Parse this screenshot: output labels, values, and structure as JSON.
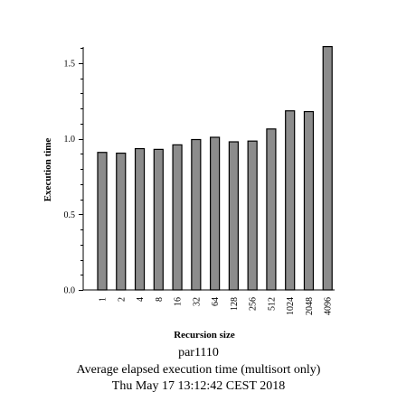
{
  "chart_data": {
    "type": "bar",
    "categories": [
      "1",
      "2",
      "4",
      "8",
      "16",
      "32",
      "64",
      "128",
      "256",
      "512",
      "1024",
      "2048",
      "4096"
    ],
    "values": [
      0.91,
      0.905,
      0.935,
      0.93,
      0.96,
      0.995,
      1.01,
      0.98,
      0.985,
      1.065,
      1.185,
      1.18,
      1.61
    ],
    "xlabel": "Recursion size",
    "ylabel": "Execution time",
    "ylim": [
      0,
      1.6
    ],
    "yticks": [
      "0.0",
      "0.5",
      "1.0",
      "1.5"
    ],
    "bar_color": "#8c8c8c",
    "grid": false
  },
  "caption": {
    "host": "par1110",
    "title": "Average elapsed execution time (multisort only)",
    "timestamp": "Thu May 17 13:12:42 CEST 2018"
  }
}
